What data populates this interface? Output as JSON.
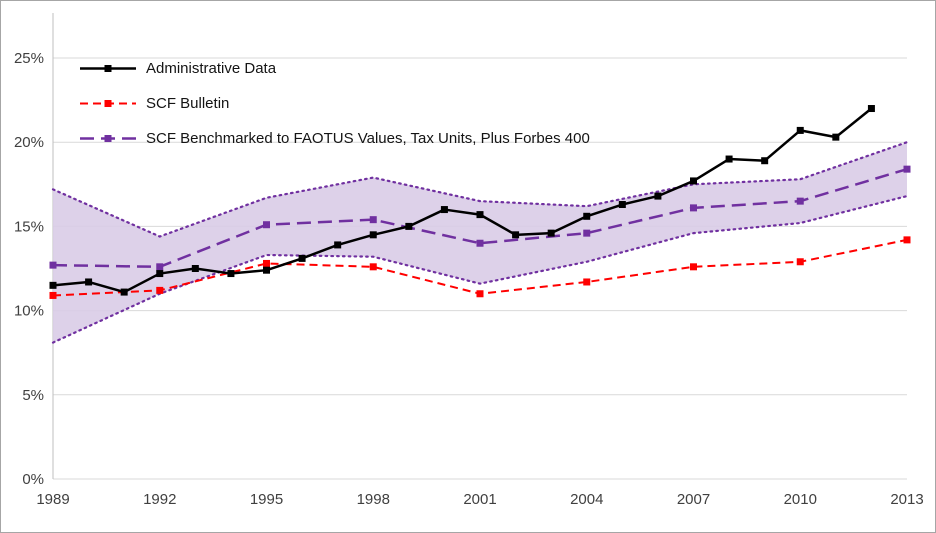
{
  "figure": {
    "background": "#ffffff",
    "border_color": "#a6a6a6"
  },
  "chart_data": {
    "type": "line",
    "title": "",
    "xlabel": "",
    "ylabel": "",
    "xlim": [
      1989,
      2013
    ],
    "ylim": [
      0,
      25
    ],
    "x_ticks": [
      "1989",
      "1992",
      "1995",
      "1998",
      "2001",
      "2004",
      "2007",
      "2010",
      "2013"
    ],
    "y_ticks": [
      "0%",
      "5%",
      "10%",
      "15%",
      "20%",
      "25%"
    ],
    "grid": "horizontal",
    "gridline_color": "#d9d9d9",
    "axis_line_color": "#bfbfbf",
    "tick_label_color": "#404040",
    "legend_position": "top-left-inside",
    "series": [
      {
        "name": "Administrative Data",
        "color": "#000000",
        "style": "solid",
        "marker": "square",
        "x": [
          1989,
          1990,
          1991,
          1992,
          1993,
          1994,
          1995,
          1996,
          1997,
          1998,
          1999,
          2000,
          2001,
          2002,
          2003,
          2004,
          2005,
          2006,
          2007,
          2008,
          2009,
          2010,
          2011,
          2012
        ],
        "values": [
          11.5,
          11.7,
          11.1,
          12.2,
          12.5,
          12.2,
          12.4,
          13.1,
          13.9,
          14.5,
          15.0,
          16.0,
          15.7,
          14.5,
          14.6,
          15.6,
          16.3,
          16.8,
          17.7,
          19.0,
          18.9,
          20.7,
          20.3,
          22.0
        ]
      },
      {
        "name": "SCF Bulletin",
        "color": "#ff0000",
        "style": "dashed",
        "marker": "square",
        "x": [
          1989,
          1992,
          1995,
          1998,
          2001,
          2004,
          2007,
          2010,
          2013
        ],
        "values": [
          10.9,
          11.2,
          12.8,
          12.6,
          11.0,
          11.7,
          12.6,
          12.9,
          14.2
        ]
      },
      {
        "name": "SCF Benchmarked to FAOTUS Values, Tax Units, Plus Forbes 400",
        "color": "#7030a0",
        "style": "long-dash",
        "marker": "square",
        "x": [
          1989,
          1992,
          1995,
          1998,
          2001,
          2004,
          2007,
          2010,
          2013
        ],
        "values": [
          12.7,
          12.6,
          15.1,
          15.4,
          14.0,
          14.6,
          16.1,
          16.5,
          18.4
        ]
      }
    ],
    "band": {
      "name": "SCF Benchmarked confidence band",
      "fill": "#d9cce7",
      "edge_color": "#7030a0",
      "edge_style": "dotted",
      "x": [
        1989,
        1992,
        1995,
        1998,
        2001,
        2004,
        2007,
        2010,
        2013
      ],
      "upper": [
        17.2,
        14.4,
        16.7,
        17.9,
        16.5,
        16.2,
        17.5,
        17.8,
        20.0
      ],
      "lower": [
        8.1,
        11.0,
        13.3,
        13.2,
        11.6,
        12.9,
        14.6,
        15.2,
        16.8
      ]
    }
  }
}
